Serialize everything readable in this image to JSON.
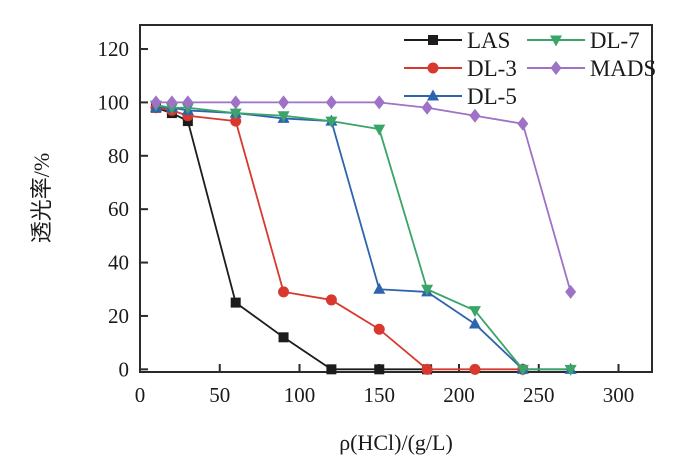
{
  "figure": {
    "background": "#ffffff",
    "frame_color": "#2a2a2a",
    "text_color": "#1a1a1a"
  },
  "chart_data": {
    "type": "line",
    "title": "",
    "xlabel": "ρ(HCl)/(g/L)",
    "ylabel": "透光率/%",
    "xlim": [
      0,
      321
    ],
    "ylim": [
      -1,
      129
    ],
    "xticks": [
      0,
      50,
      100,
      150,
      200,
      250,
      300
    ],
    "yticks": [
      0,
      20,
      40,
      60,
      80,
      100,
      120
    ],
    "grid": false,
    "legend_position": "top-right-inside",
    "legend_columns": 2,
    "series": [
      {
        "name": "LAS",
        "color": "#1c1c1c",
        "marker": "square",
        "x": [
          10,
          20,
          30,
          60,
          90,
          120,
          150,
          180
        ],
        "y": [
          98,
          96,
          93,
          25,
          12,
          0,
          0,
          0
        ]
      },
      {
        "name": "DL-3",
        "color": "#d8392f",
        "marker": "circle",
        "x": [
          10,
          20,
          30,
          60,
          90,
          120,
          150,
          180,
          210,
          240
        ],
        "y": [
          98,
          97,
          95,
          93,
          29,
          26,
          15,
          0,
          0,
          0
        ]
      },
      {
        "name": "DL-5",
        "color": "#2e64ae",
        "marker": "triangle-up",
        "x": [
          10,
          20,
          30,
          60,
          90,
          120,
          150,
          180,
          210,
          240,
          270
        ],
        "y": [
          98,
          98,
          97,
          96,
          94,
          93,
          30,
          29,
          17,
          0,
          0
        ]
      },
      {
        "name": "DL-7",
        "color": "#3ba467",
        "marker": "triangle-down",
        "x": [
          10,
          20,
          30,
          60,
          90,
          120,
          150,
          180,
          210,
          240,
          270
        ],
        "y": [
          99,
          98,
          98,
          96,
          95,
          93,
          90,
          30,
          22,
          0,
          0
        ]
      },
      {
        "name": "MADS",
        "color": "#9e72c6",
        "marker": "diamond",
        "x": [
          10,
          20,
          30,
          60,
          90,
          120,
          150,
          180,
          210,
          240,
          270
        ],
        "y": [
          100,
          100,
          100,
          100,
          100,
          100,
          100,
          98,
          95,
          92,
          29
        ]
      }
    ]
  }
}
